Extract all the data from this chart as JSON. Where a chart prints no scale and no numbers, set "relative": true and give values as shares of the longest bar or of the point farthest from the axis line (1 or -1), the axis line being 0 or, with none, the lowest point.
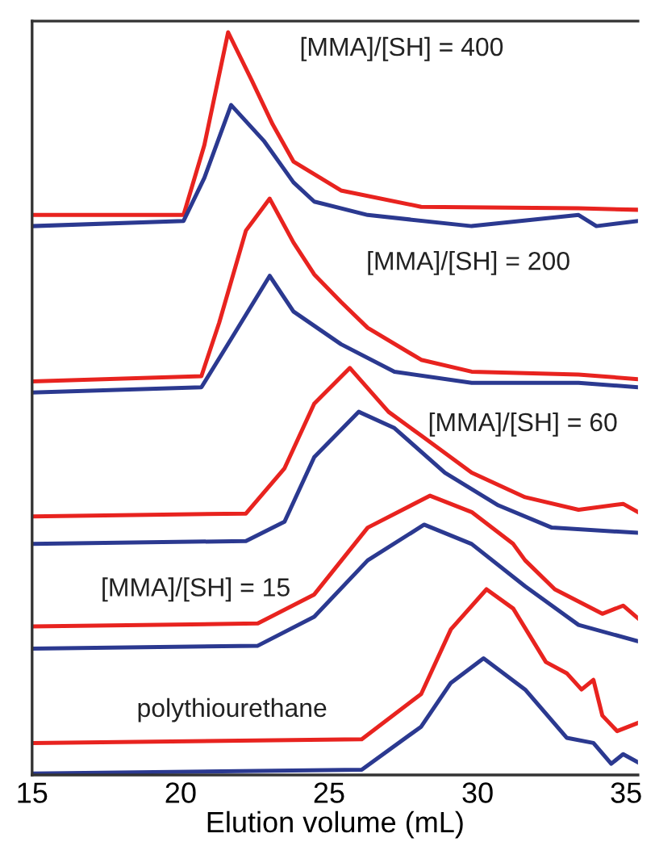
{
  "chart_data": {
    "type": "line",
    "relative": true,
    "xlabel": "Elution volume (mL)",
    "xlim": [
      15,
      35.4
    ],
    "xticks": [
      15,
      20,
      25,
      30,
      35
    ],
    "grid": false,
    "legend": false,
    "tick_labels": "x",
    "line_style": "solid",
    "marker": "none",
    "series": [
      {
        "color": "#e8231f",
        "x": [
          15,
          20.1,
          20.8,
          21.6,
          22.4,
          23.1,
          23.8,
          25.4,
          28.1,
          33.4,
          35.4
        ],
        "values": [
          0.754,
          0.754,
          0.848,
          1.0,
          0.935,
          0.876,
          0.826,
          0.787,
          0.765,
          0.763,
          0.761
        ]
      },
      {
        "color": "#2b3990",
        "x": [
          15,
          20.1,
          20.8,
          21.7,
          22.8,
          23.8,
          24.5,
          26.3,
          29.8,
          33.4,
          34.0,
          35.4
        ],
        "values": [
          0.739,
          0.746,
          0.804,
          0.902,
          0.854,
          0.798,
          0.772,
          0.754,
          0.739,
          0.754,
          0.739,
          0.746
        ]
      },
      {
        "color": "#e8231f",
        "x": [
          15,
          20.7,
          21.3,
          22.2,
          23.0,
          23.8,
          24.5,
          25.4,
          26.3,
          28.1,
          29.8,
          33.4,
          35.4
        ],
        "values": [
          0.53,
          0.537,
          0.609,
          0.733,
          0.776,
          0.717,
          0.674,
          0.637,
          0.602,
          0.559,
          0.543,
          0.539,
          0.533
        ]
      },
      {
        "color": "#2b3990",
        "x": [
          15,
          20.7,
          21.7,
          23.0,
          23.8,
          25.4,
          27.2,
          29.8,
          33.4,
          35.4
        ],
        "values": [
          0.515,
          0.522,
          0.587,
          0.672,
          0.624,
          0.58,
          0.543,
          0.528,
          0.528,
          0.522
        ]
      },
      {
        "color": "#e8231f",
        "x": [
          15,
          22.2,
          23.5,
          24.5,
          25.7,
          27.0,
          28.1,
          29.8,
          31.6,
          33.4,
          34.9,
          35.4
        ],
        "values": [
          0.348,
          0.352,
          0.413,
          0.5,
          0.548,
          0.489,
          0.457,
          0.407,
          0.374,
          0.357,
          0.365,
          0.354
        ]
      },
      {
        "color": "#2b3990",
        "x": [
          15,
          22.2,
          23.5,
          24.5,
          26.0,
          27.2,
          28.9,
          30.7,
          32.5,
          35.4
        ],
        "values": [
          0.311,
          0.315,
          0.341,
          0.428,
          0.489,
          0.467,
          0.407,
          0.363,
          0.333,
          0.326
        ]
      },
      {
        "color": "#e8231f",
        "x": [
          15,
          22.6,
          24.5,
          26.3,
          28.4,
          29.8,
          31.2,
          31.6,
          32.6,
          34.2,
          34.9,
          35.4
        ],
        "values": [
          0.2,
          0.204,
          0.243,
          0.333,
          0.376,
          0.354,
          0.311,
          0.289,
          0.25,
          0.217,
          0.228,
          0.211
        ]
      },
      {
        "color": "#2b3990",
        "x": [
          15,
          22.6,
          24.5,
          26.3,
          28.2,
          29.8,
          31.6,
          33.4,
          35.4
        ],
        "values": [
          0.17,
          0.174,
          0.213,
          0.289,
          0.337,
          0.311,
          0.254,
          0.202,
          0.18
        ]
      },
      {
        "color": "#e8231f",
        "x": [
          15,
          26.1,
          28.1,
          29.1,
          30.3,
          31.2,
          32.3,
          33.0,
          33.5,
          33.9,
          34.2,
          34.7,
          35.4
        ],
        "values": [
          0.043,
          0.048,
          0.109,
          0.196,
          0.25,
          0.224,
          0.152,
          0.137,
          0.115,
          0.128,
          0.08,
          0.059,
          0.07
        ]
      },
      {
        "color": "#2b3990",
        "x": [
          15,
          26.1,
          28.1,
          29.1,
          30.2,
          31.6,
          33.0,
          33.9,
          34.5,
          34.9,
          35.4
        ],
        "values": [
          0.002,
          0.007,
          0.065,
          0.124,
          0.157,
          0.115,
          0.05,
          0.043,
          0.015,
          0.028,
          0.017
        ]
      }
    ],
    "annotations": [
      "[MMA]/[SH] = 400",
      "[MMA]/[SH] = 200",
      "[MMA]/[SH] = 60",
      "[MMA]/[SH] = 15",
      "polythiourethane"
    ]
  }
}
